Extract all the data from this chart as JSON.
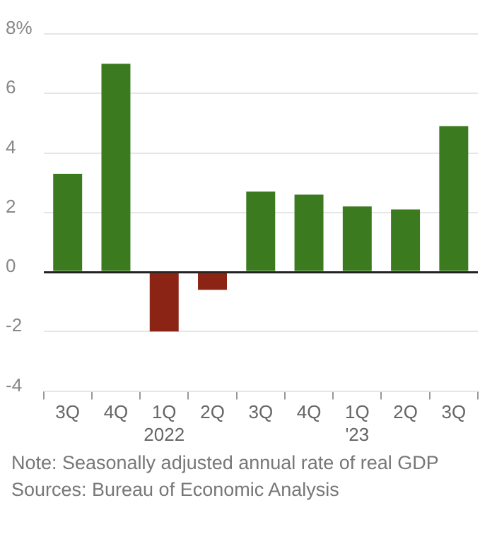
{
  "chart_data": {
    "type": "bar",
    "categories": [
      "3Q",
      "4Q",
      "1Q\n2022",
      "2Q",
      "3Q",
      "4Q",
      "1Q\n'23",
      "2Q",
      "3Q"
    ],
    "values": [
      3.3,
      7.0,
      -2.0,
      -0.6,
      2.7,
      2.6,
      2.2,
      2.1,
      4.9
    ],
    "colors": [
      "#3b7a1f",
      "#3b7a1f",
      "#8b2414",
      "#8b2414",
      "#3b7a1f",
      "#3b7a1f",
      "#3b7a1f",
      "#3b7a1f",
      "#3b7a1f"
    ],
    "ylim": [
      -4,
      8
    ],
    "yticks": [
      -4,
      -2,
      0,
      2,
      4,
      6,
      {
        "value": 8,
        "label": "8%"
      }
    ],
    "grid": "y",
    "annotations": [
      "Note: Seasonally adjusted annual rate of real GDP",
      "Sources: Bureau of Economic Analysis"
    ]
  }
}
